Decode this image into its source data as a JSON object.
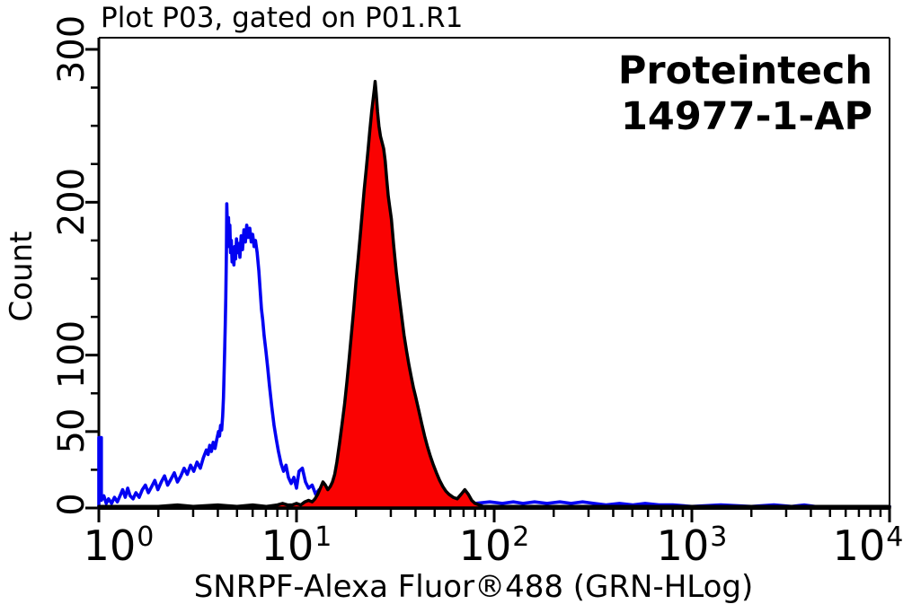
{
  "title": "Plot P03, gated on P01.R1",
  "watermark": {
    "line1": "Proteintech",
    "line2": "14977-1-AP"
  },
  "axes": {
    "x": {
      "label": "SNRPF-Alexa Fluor®488 (GRN-HLog)",
      "scale": "log10",
      "min": 1,
      "max": 10000,
      "decade_tick_labels": [
        {
          "base": "10",
          "exp": "0"
        },
        {
          "base": "10",
          "exp": "1"
        },
        {
          "base": "10",
          "exp": "2"
        },
        {
          "base": "10",
          "exp": "3"
        },
        {
          "base": "10",
          "exp": "4"
        }
      ]
    },
    "y": {
      "label": "Count",
      "min": 0,
      "max": 300,
      "major_ticks": [
        0,
        50,
        100,
        200,
        300
      ],
      "minor_ticks": [
        25,
        75,
        125,
        150,
        175,
        225,
        250,
        275
      ],
      "tick_labels": [
        "0",
        "50",
        "100",
        "200",
        "300"
      ]
    }
  },
  "colors": {
    "background": "#ffffff",
    "axis": "#000000",
    "blue_series": "#0202f2",
    "red_fill": "#fa0202",
    "red_outline": "#000000"
  },
  "chart_data": {
    "type": "area",
    "title": "Plot P03, gated on P01.R1",
    "xlabel": "SNRPF-Alexa Fluor®488 (GRN-HLog)",
    "ylabel": "Count",
    "x_scale": "log10",
    "xlim": [
      1,
      10000
    ],
    "ylim": [
      0,
      300
    ],
    "grid": false,
    "legend": "none",
    "series": [
      {
        "name": "control-open-histogram",
        "color": "#0202f2",
        "fill": "none",
        "peak": {
          "x": 4.4,
          "count": 199
        },
        "points": [
          [
            1.0,
            0
          ],
          [
            1.0,
            46
          ],
          [
            1.03,
            46
          ],
          [
            1.03,
            5
          ],
          [
            1.06,
            8
          ],
          [
            1.09,
            3
          ],
          [
            1.12,
            6
          ],
          [
            1.16,
            3
          ],
          [
            1.2,
            7
          ],
          [
            1.24,
            4
          ],
          [
            1.28,
            8
          ],
          [
            1.32,
            12
          ],
          [
            1.36,
            7
          ],
          [
            1.4,
            13
          ],
          [
            1.44,
            8
          ],
          [
            1.49,
            6
          ],
          [
            1.54,
            10
          ],
          [
            1.6,
            7
          ],
          [
            1.66,
            12
          ],
          [
            1.72,
            15
          ],
          [
            1.78,
            10
          ],
          [
            1.85,
            14
          ],
          [
            1.92,
            18
          ],
          [
            1.99,
            12
          ],
          [
            2.07,
            17
          ],
          [
            2.15,
            21
          ],
          [
            2.23,
            15
          ],
          [
            2.32,
            19
          ],
          [
            2.41,
            23
          ],
          [
            2.5,
            17
          ],
          [
            2.6,
            21
          ],
          [
            2.7,
            26
          ],
          [
            2.8,
            22
          ],
          [
            2.91,
            28
          ],
          [
            3.02,
            24
          ],
          [
            3.14,
            30
          ],
          [
            3.26,
            26
          ],
          [
            3.38,
            33
          ],
          [
            3.5,
            38
          ],
          [
            3.57,
            35
          ],
          [
            3.64,
            41
          ],
          [
            3.71,
            37
          ],
          [
            3.79,
            43
          ],
          [
            3.87,
            39
          ],
          [
            3.95,
            45
          ],
          [
            4.03,
            50
          ],
          [
            4.08,
            47
          ],
          [
            4.13,
            54
          ],
          [
            4.18,
            51
          ],
          [
            4.23,
            60
          ],
          [
            4.27,
            72
          ],
          [
            4.3,
            88
          ],
          [
            4.33,
            102
          ],
          [
            4.36,
            120
          ],
          [
            4.39,
            138
          ],
          [
            4.42,
            168
          ],
          [
            4.44,
            199
          ],
          [
            4.47,
            183
          ],
          [
            4.5,
            171
          ],
          [
            4.53,
            190
          ],
          [
            4.56,
            176
          ],
          [
            4.6,
            185
          ],
          [
            4.64,
            167
          ],
          [
            4.68,
            175
          ],
          [
            4.72,
            161
          ],
          [
            4.77,
            170
          ],
          [
            4.82,
            159
          ],
          [
            4.87,
            171
          ],
          [
            4.92,
            163
          ],
          [
            4.97,
            176
          ],
          [
            5.03,
            167
          ],
          [
            5.1,
            173
          ],
          [
            5.17,
            164
          ],
          [
            5.25,
            178
          ],
          [
            5.33,
            169
          ],
          [
            5.42,
            182
          ],
          [
            5.51,
            174
          ],
          [
            5.6,
            185
          ],
          [
            5.7,
            177
          ],
          [
            5.8,
            183
          ],
          [
            5.9,
            174
          ],
          [
            6.0,
            179
          ],
          [
            6.1,
            171
          ],
          [
            6.2,
            175
          ],
          [
            6.32,
            167
          ],
          [
            6.45,
            155
          ],
          [
            6.55,
            142
          ],
          [
            6.65,
            130
          ],
          [
            6.75,
            123
          ],
          [
            6.85,
            113
          ],
          [
            7.0,
            103
          ],
          [
            7.15,
            92
          ],
          [
            7.3,
            80
          ],
          [
            7.5,
            66
          ],
          [
            7.7,
            54
          ],
          [
            7.9,
            45
          ],
          [
            8.1,
            37
          ],
          [
            8.35,
            29
          ],
          [
            8.6,
            24
          ],
          [
            8.85,
            28
          ],
          [
            9.1,
            20
          ],
          [
            9.4,
            16
          ],
          [
            9.7,
            20
          ],
          [
            10.0,
            13
          ],
          [
            10.3,
            24
          ],
          [
            10.7,
            26
          ],
          [
            11.1,
            17
          ],
          [
            11.5,
            13
          ],
          [
            12.0,
            15
          ],
          [
            12.5,
            9
          ],
          [
            13.0,
            12
          ],
          [
            13.6,
            6
          ],
          [
            14.2,
            10
          ],
          [
            14.9,
            5
          ],
          [
            15.6,
            7
          ],
          [
            16.5,
            4
          ],
          [
            17.5,
            5
          ],
          [
            19,
            3
          ],
          [
            21,
            2
          ],
          [
            24,
            3
          ],
          [
            28,
            2
          ],
          [
            35,
            2
          ],
          [
            45,
            3
          ],
          [
            60,
            2
          ],
          [
            80,
            3
          ],
          [
            95,
            4
          ],
          [
            110,
            3
          ],
          [
            125,
            4
          ],
          [
            140,
            3
          ],
          [
            160,
            4
          ],
          [
            185,
            3
          ],
          [
            215,
            4
          ],
          [
            245,
            3
          ],
          [
            280,
            4
          ],
          [
            320,
            3
          ],
          [
            370,
            2
          ],
          [
            430,
            3
          ],
          [
            500,
            2
          ],
          [
            580,
            3
          ],
          [
            680,
            2
          ],
          [
            800,
            2
          ],
          [
            1000,
            1
          ],
          [
            1400,
            2
          ],
          [
            2000,
            1
          ],
          [
            2600,
            2
          ],
          [
            3200,
            1
          ],
          [
            3700,
            2
          ],
          [
            4200,
            1
          ],
          [
            6000,
            1
          ],
          [
            10000,
            1
          ]
        ]
      },
      {
        "name": "snrpf-alexa-fluor-488-filled-histogram",
        "color": "#fa0202",
        "fill": "#fa0202",
        "outline": "#000000",
        "peak": {
          "x": 25,
          "count": 279
        },
        "points": [
          [
            1,
            1
          ],
          [
            1.5,
            1
          ],
          [
            2,
            1
          ],
          [
            2.5,
            2
          ],
          [
            3,
            1
          ],
          [
            4,
            2
          ],
          [
            5,
            1
          ],
          [
            6,
            2
          ],
          [
            7,
            1
          ],
          [
            8,
            2
          ],
          [
            8.5,
            3
          ],
          [
            9,
            2
          ],
          [
            9.5,
            2
          ],
          [
            10,
            3
          ],
          [
            10.5,
            2
          ],
          [
            11,
            4
          ],
          [
            11.5,
            5
          ],
          [
            12,
            4
          ],
          [
            12.4,
            6
          ],
          [
            12.8,
            9
          ],
          [
            13.2,
            13
          ],
          [
            13.6,
            17
          ],
          [
            14,
            15
          ],
          [
            14.4,
            12
          ],
          [
            14.8,
            14
          ],
          [
            15.2,
            17
          ],
          [
            15.6,
            22
          ],
          [
            16,
            30
          ],
          [
            16.5,
            42
          ],
          [
            17,
            55
          ],
          [
            17.5,
            68
          ],
          [
            18,
            83
          ],
          [
            18.5,
            99
          ],
          [
            19,
            115
          ],
          [
            19.5,
            131
          ],
          [
            20,
            148
          ],
          [
            20.5,
            163
          ],
          [
            21,
            178
          ],
          [
            21.5,
            193
          ],
          [
            22,
            208
          ],
          [
            22.5,
            221
          ],
          [
            23,
            234
          ],
          [
            23.5,
            247
          ],
          [
            24,
            259
          ],
          [
            24.5,
            269
          ],
          [
            24.8,
            275
          ],
          [
            25,
            279
          ],
          [
            25.3,
            271
          ],
          [
            25.7,
            259
          ],
          [
            26.1,
            250
          ],
          [
            26.6,
            243
          ],
          [
            27.1,
            239
          ],
          [
            27.6,
            235
          ],
          [
            28.1,
            227
          ],
          [
            28.6,
            215
          ],
          [
            29.1,
            204
          ],
          [
            29.6,
            197
          ],
          [
            30.2,
            189
          ],
          [
            31,
            172
          ],
          [
            32,
            154
          ],
          [
            33,
            139
          ],
          [
            34,
            126
          ],
          [
            35,
            113
          ],
          [
            36,
            103
          ],
          [
            37,
            94
          ],
          [
            38,
            86
          ],
          [
            39,
            79
          ],
          [
            40,
            73
          ],
          [
            41.5,
            64
          ],
          [
            43,
            55
          ],
          [
            44.5,
            47
          ],
          [
            46,
            40
          ],
          [
            47.5,
            34
          ],
          [
            49,
            29
          ],
          [
            51,
            23
          ],
          [
            53,
            18
          ],
          [
            55,
            14
          ],
          [
            57,
            11
          ],
          [
            59,
            9
          ],
          [
            62,
            7
          ],
          [
            65,
            6
          ],
          [
            68,
            9
          ],
          [
            71,
            12
          ],
          [
            74,
            9
          ],
          [
            77,
            5
          ],
          [
            80,
            3
          ],
          [
            84,
            2
          ],
          [
            88,
            1
          ],
          [
            95,
            1
          ],
          [
            110,
            1
          ],
          [
            140,
            1
          ],
          [
            200,
            1
          ],
          [
            300,
            1
          ],
          [
            500,
            1
          ],
          [
            800,
            1
          ],
          [
            1500,
            1
          ],
          [
            3000,
            1
          ],
          [
            6000,
            1
          ],
          [
            10000,
            1
          ]
        ]
      }
    ]
  }
}
